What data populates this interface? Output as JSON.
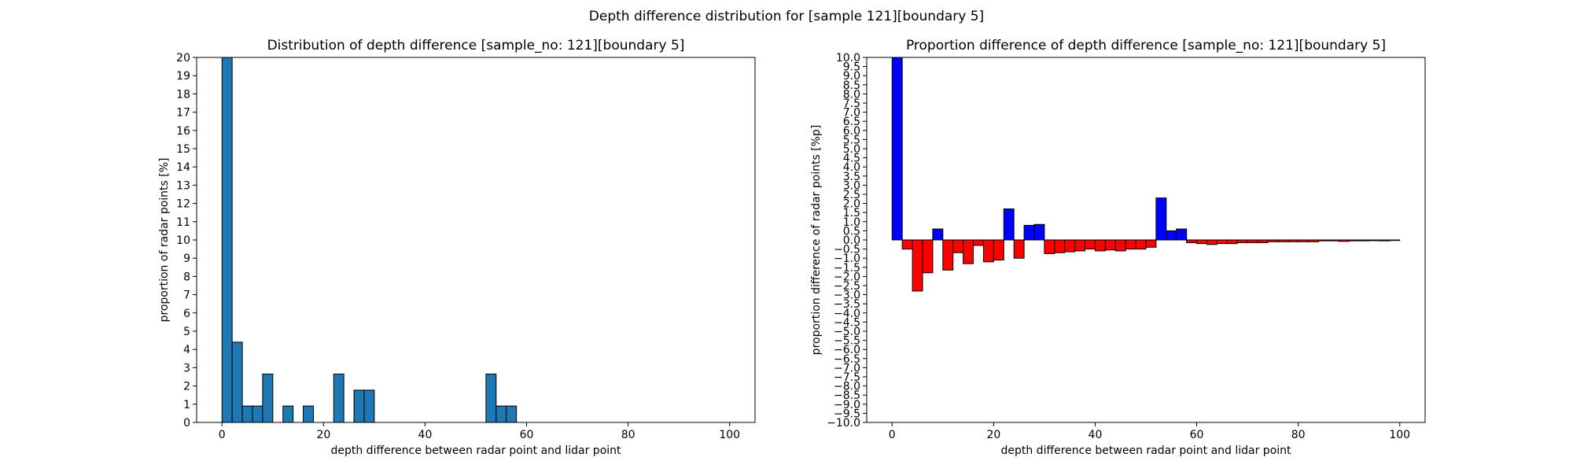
{
  "figure": {
    "suptitle": "Depth difference distribution for [sample 121][boundary 5]"
  },
  "chart_data": [
    {
      "type": "bar",
      "title": "Distribution of depth difference [sample_no: 121][boundary 5]",
      "xlabel": "depth difference between radar point and lidar point",
      "ylabel": "proportion of radar points [%]",
      "xlim": [
        -5,
        105
      ],
      "ylim": [
        0,
        20
      ],
      "xticks": [
        0,
        20,
        40,
        60,
        80,
        100
      ],
      "yticks": [
        0,
        1,
        2,
        3,
        4,
        5,
        6,
        7,
        8,
        9,
        10,
        11,
        12,
        13,
        14,
        15,
        16,
        17,
        18,
        19,
        20
      ],
      "grid": false,
      "bin_width": 2,
      "bins": [
        {
          "x": 0,
          "value": 20
        },
        {
          "x": 2,
          "value": 4.4
        },
        {
          "x": 4,
          "value": 0.9
        },
        {
          "x": 6,
          "value": 0.9
        },
        {
          "x": 8,
          "value": 2.65
        },
        {
          "x": 12,
          "value": 0.9
        },
        {
          "x": 16,
          "value": 0.9
        },
        {
          "x": 22,
          "value": 2.65
        },
        {
          "x": 26,
          "value": 1.77
        },
        {
          "x": 28,
          "value": 1.77
        },
        {
          "x": 52,
          "value": 2.65
        },
        {
          "x": 54,
          "value": 0.9
        },
        {
          "x": 56,
          "value": 0.9
        }
      ],
      "colors": {
        "bar": "#1f77b4",
        "edge": "#000000"
      }
    },
    {
      "type": "bar",
      "title": "Proportion difference of depth difference [sample_no: 121][boundary 5]",
      "xlabel": "depth difference between radar point and lidar point",
      "ylabel": "proportion difference of radar points [%p]",
      "xlim": [
        -5,
        105
      ],
      "ylim": [
        -10,
        10
      ],
      "xticks": [
        0,
        20,
        40,
        60,
        80,
        100
      ],
      "yticks": [
        "10.0",
        "9.5",
        "9.0",
        "8.5",
        "8.0",
        "7.5",
        "7.0",
        "6.5",
        "6.0",
        "5.5",
        "5.0",
        "4.5",
        "4.0",
        "3.5",
        "3.0",
        "2.5",
        "2.0",
        "1.5",
        "1.0",
        "0.5",
        "0.0",
        "−0.5",
        "−1.0",
        "−1.5",
        "−2.0",
        "−2.5",
        "−3.0",
        "−3.5",
        "−4.0",
        "−4.5",
        "−5.0",
        "−5.5",
        "−6.0",
        "−6.5",
        "−7.0",
        "−7.5",
        "−8.0",
        "−8.5",
        "−9.0",
        "−9.5",
        "−10.0"
      ],
      "grid": false,
      "bin_width": 2,
      "bins": [
        {
          "x": 0,
          "value": 10
        },
        {
          "x": 2,
          "value": -0.5
        },
        {
          "x": 4,
          "value": -2.8
        },
        {
          "x": 6,
          "value": -1.8
        },
        {
          "x": 8,
          "value": 0.6
        },
        {
          "x": 10,
          "value": -1.65
        },
        {
          "x": 12,
          "value": -0.7
        },
        {
          "x": 14,
          "value": -1.3
        },
        {
          "x": 16,
          "value": -0.3
        },
        {
          "x": 18,
          "value": -1.2
        },
        {
          "x": 20,
          "value": -1.1
        },
        {
          "x": 22,
          "value": 1.7
        },
        {
          "x": 24,
          "value": -1.0
        },
        {
          "x": 26,
          "value": 0.8
        },
        {
          "x": 28,
          "value": 0.85
        },
        {
          "x": 30,
          "value": -0.75
        },
        {
          "x": 32,
          "value": -0.7
        },
        {
          "x": 34,
          "value": -0.65
        },
        {
          "x": 36,
          "value": -0.6
        },
        {
          "x": 38,
          "value": -0.5
        },
        {
          "x": 40,
          "value": -0.6
        },
        {
          "x": 42,
          "value": -0.55
        },
        {
          "x": 44,
          "value": -0.6
        },
        {
          "x": 46,
          "value": -0.5
        },
        {
          "x": 48,
          "value": -0.5
        },
        {
          "x": 50,
          "value": -0.4
        },
        {
          "x": 52,
          "value": 2.3
        },
        {
          "x": 54,
          "value": 0.5
        },
        {
          "x": 56,
          "value": 0.6
        },
        {
          "x": 58,
          "value": -0.15
        },
        {
          "x": 60,
          "value": -0.2
        },
        {
          "x": 62,
          "value": -0.25
        },
        {
          "x": 64,
          "value": -0.2
        },
        {
          "x": 66,
          "value": -0.2
        },
        {
          "x": 68,
          "value": -0.15
        },
        {
          "x": 70,
          "value": -0.15
        },
        {
          "x": 72,
          "value": -0.15
        },
        {
          "x": 74,
          "value": -0.1
        },
        {
          "x": 76,
          "value": -0.1
        },
        {
          "x": 78,
          "value": -0.1
        },
        {
          "x": 80,
          "value": -0.1
        },
        {
          "x": 82,
          "value": -0.1
        },
        {
          "x": 84,
          "value": -0.05
        },
        {
          "x": 86,
          "value": -0.05
        },
        {
          "x": 88,
          "value": -0.08
        },
        {
          "x": 90,
          "value": -0.05
        },
        {
          "x": 92,
          "value": -0.05
        },
        {
          "x": 94,
          "value": -0.04
        },
        {
          "x": 96,
          "value": -0.05
        },
        {
          "x": 98,
          "value": -0.03
        }
      ],
      "colors": {
        "positive": "#0000ff",
        "negative": "#ff0000",
        "edge": "#000000"
      }
    }
  ]
}
